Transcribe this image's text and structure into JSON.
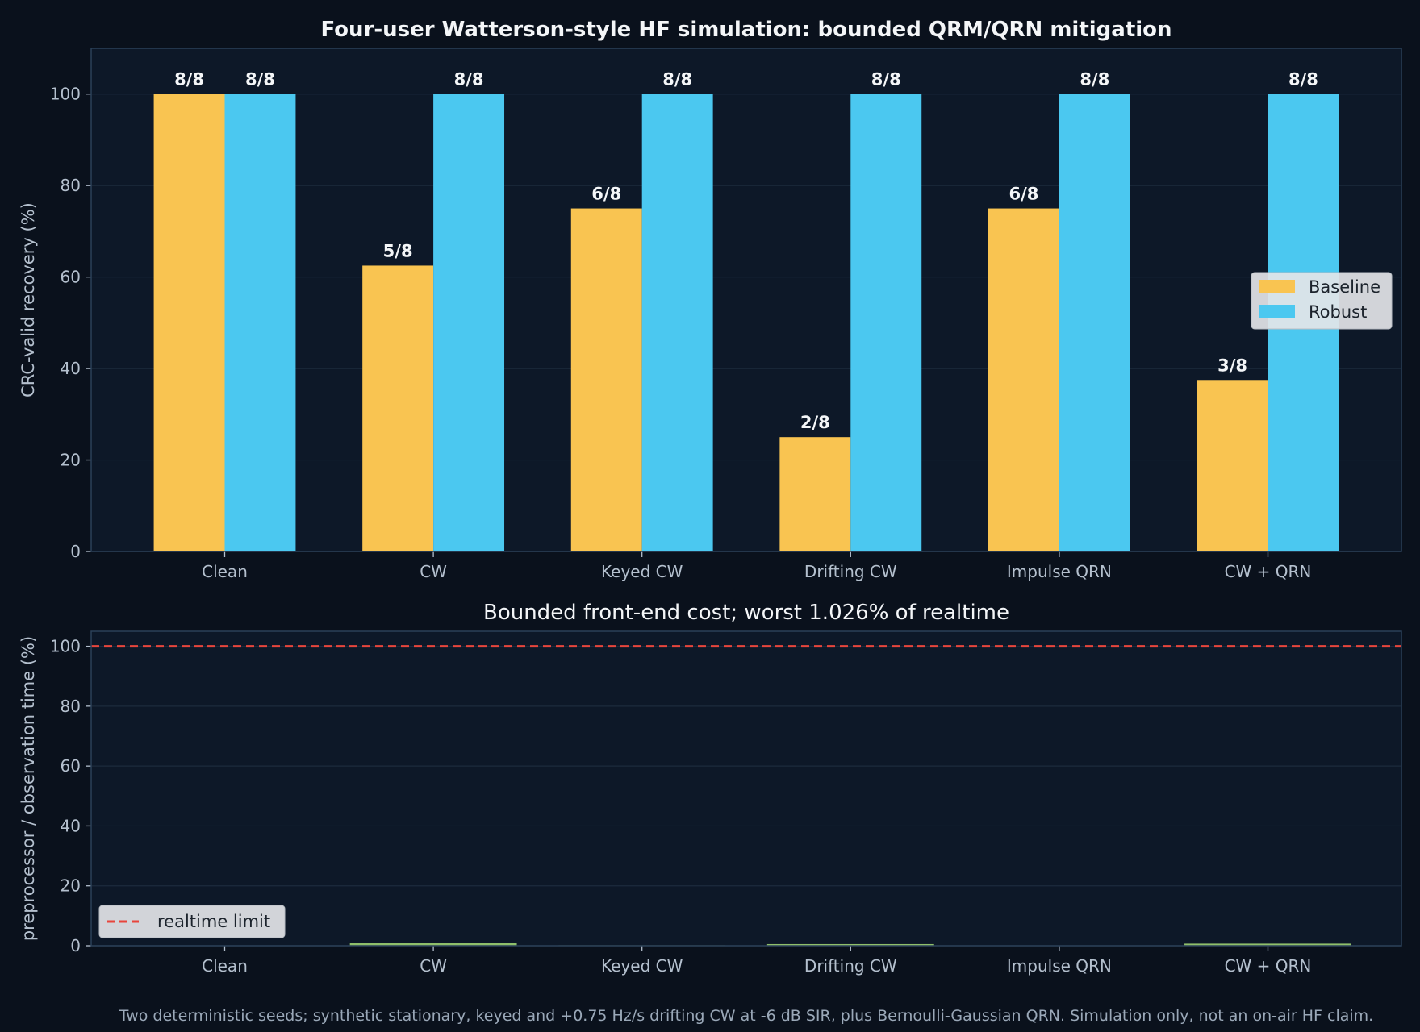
{
  "figure": {
    "footnote": "Two deterministic seeds; synthetic stationary, keyed and +0.75 Hz/s drifting CW at -6 dB SIR, plus Bernoulli-Gaussian QRN. Simulation only, not an on-air HF claim."
  },
  "colors": {
    "background": "#0a111c",
    "panel": "#0d1828",
    "panel_border": "#2b4058",
    "grid": "#1c2a3c",
    "baseline": "#f9c451",
    "robust": "#4bc8f0",
    "cost": "#8fbf6a",
    "realtime_limit": "#e8453c"
  },
  "chart_data": [
    {
      "type": "bar",
      "title": "Four-user Watterson-style HF simulation: bounded QRM/QRN mitigation",
      "ylabel": "CRC-valid recovery (%)",
      "xlabel": "",
      "ylim": [
        0,
        110
      ],
      "yticks": [
        0,
        20,
        40,
        60,
        80,
        100
      ],
      "grid": true,
      "legend_position": "center-right",
      "categories": [
        "Clean",
        "CW",
        "Keyed CW",
        "Drifting CW",
        "Impulse QRN",
        "CW + QRN"
      ],
      "series": [
        {
          "name": "Baseline",
          "color": "#f9c451",
          "values": [
            100,
            62.5,
            75,
            25,
            75,
            37.5
          ],
          "labels": [
            "8/8",
            "5/8",
            "6/8",
            "2/8",
            "6/8",
            "3/8"
          ]
        },
        {
          "name": "Robust",
          "color": "#4bc8f0",
          "values": [
            100,
            100,
            100,
            100,
            100,
            100
          ],
          "labels": [
            "8/8",
            "8/8",
            "8/8",
            "8/8",
            "8/8",
            "8/8"
          ]
        }
      ]
    },
    {
      "type": "bar",
      "title": "Bounded front-end cost; worst 1.026% of realtime",
      "ylabel": "preprocessor / observation time (%)",
      "xlabel": "",
      "ylim": [
        0,
        105
      ],
      "yticks": [
        0,
        20,
        40,
        60,
        80,
        100
      ],
      "grid": true,
      "legend_position": "lower-left",
      "categories": [
        "Clean",
        "CW",
        "Keyed CW",
        "Drifting CW",
        "Impulse QRN",
        "CW + QRN"
      ],
      "series": [
        {
          "name": "",
          "color": "#8fbf6a",
          "values": [
            0.05,
            1.026,
            0.15,
            0.55,
            0.08,
            0.7
          ]
        }
      ],
      "reference_line": {
        "name": "realtime limit",
        "y": 100,
        "color": "#e8453c",
        "style": "dashed"
      }
    }
  ]
}
